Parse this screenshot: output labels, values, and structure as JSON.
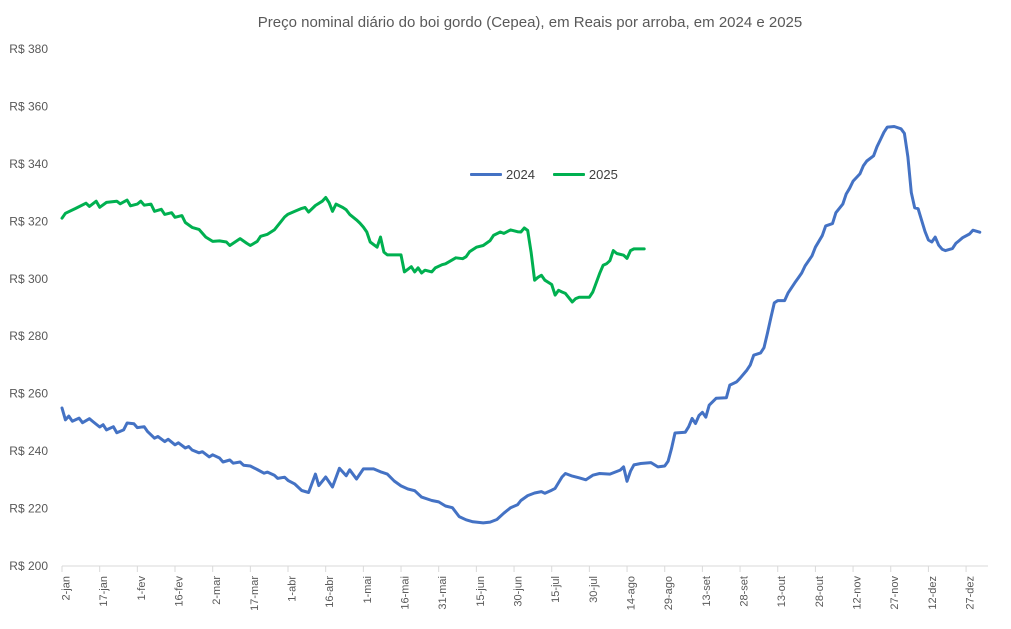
{
  "title": "Preço nominal diário do boi gordo (Cepea), em Reais por arroba, em 2024 e 2025",
  "legend": [
    {
      "label": "2024",
      "color": "#4472C4"
    },
    {
      "label": "2025",
      "color": "#00B050"
    }
  ],
  "chart_data": {
    "type": "line",
    "title": "Preço nominal diário do boi gordo (Cepea), em Reais por arroba, em 2024 e 2025",
    "xlabel": "",
    "ylabel": "",
    "grid": false,
    "legend_position": "inside-top-center",
    "y_axis": {
      "min": 200,
      "max": 380,
      "step": 20,
      "tick_prefix": "R$ ",
      "tick_labels": [
        "R$ 200",
        "R$ 220",
        "R$ 240",
        "R$ 260",
        "R$ 280",
        "R$ 300",
        "R$ 320",
        "R$ 340",
        "R$ 360",
        "R$ 380"
      ]
    },
    "x_axis": {
      "unit": "business-day index from 2-jan (11 points per labeled tick)",
      "points_per_tick": 11,
      "tick_labels": [
        "2-jan",
        "17-jan",
        "1-fev",
        "16-fev",
        "2-mar",
        "17-mar",
        "1-abr",
        "16-abr",
        "1-mai",
        "16-mai",
        "31-mai",
        "15-jun",
        "30-jun",
        "15-jul",
        "30-jul",
        "14-ago",
        "29-ago",
        "13-set",
        "28-set",
        "13-out",
        "28-out",
        "12-nov",
        "27-nov",
        "12-dez",
        "27-dez"
      ]
    },
    "series": [
      {
        "name": "2024",
        "color": "#4472C4",
        "points": [
          [
            0,
            255
          ],
          [
            1,
            250.9
          ],
          [
            2,
            252.2
          ],
          [
            3,
            250.4
          ],
          [
            5,
            251.5
          ],
          [
            6,
            249.9
          ],
          [
            8,
            251.3
          ],
          [
            9,
            250.3
          ],
          [
            11,
            248.4
          ],
          [
            12,
            249.2
          ],
          [
            13,
            247.4
          ],
          [
            15,
            248.5
          ],
          [
            16,
            246.4
          ],
          [
            18,
            247.4
          ],
          [
            19,
            249.8
          ],
          [
            21,
            249.5
          ],
          [
            22,
            248.2
          ],
          [
            24,
            248.5
          ],
          [
            25,
            246.8
          ],
          [
            27,
            244.5
          ],
          [
            28,
            245.1
          ],
          [
            30,
            243.3
          ],
          [
            31,
            244.1
          ],
          [
            33,
            242.2
          ],
          [
            34,
            242.9
          ],
          [
            36,
            241.1
          ],
          [
            37,
            241.6
          ],
          [
            38,
            240.4
          ],
          [
            40,
            239.4
          ],
          [
            41,
            239.8
          ],
          [
            43,
            238
          ],
          [
            44,
            238.7
          ],
          [
            46,
            237.6
          ],
          [
            47,
            236.2
          ],
          [
            49,
            236.9
          ],
          [
            50,
            235.8
          ],
          [
            52,
            236.2
          ],
          [
            53,
            235.1
          ],
          [
            55,
            234.8
          ],
          [
            57,
            233.6
          ],
          [
            59,
            232.3
          ],
          [
            60,
            232.7
          ],
          [
            62,
            231.6
          ],
          [
            63,
            230.5
          ],
          [
            65,
            230.9
          ],
          [
            66,
            229.8
          ],
          [
            68,
            228.5
          ],
          [
            70,
            226.3
          ],
          [
            72,
            225.6
          ],
          [
            74,
            232
          ],
          [
            75,
            228
          ],
          [
            77,
            231
          ],
          [
            79,
            227.5
          ],
          [
            81,
            234
          ],
          [
            83,
            231.4
          ],
          [
            84,
            233.5
          ],
          [
            86,
            230.3
          ],
          [
            88,
            233.8
          ],
          [
            91,
            233.8
          ],
          [
            93,
            232.8
          ],
          [
            95,
            232
          ],
          [
            97,
            229.6
          ],
          [
            99,
            227.9
          ],
          [
            101,
            226.8
          ],
          [
            103,
            226.2
          ],
          [
            105,
            224
          ],
          [
            108,
            222.8
          ],
          [
            110,
            222.3
          ],
          [
            112,
            220.9
          ],
          [
            114,
            220.3
          ],
          [
            116,
            217.2
          ],
          [
            118,
            216.1
          ],
          [
            120,
            215.4
          ],
          [
            123,
            215
          ],
          [
            125,
            215.3
          ],
          [
            127,
            216.2
          ],
          [
            129,
            218.4
          ],
          [
            131,
            220.3
          ],
          [
            133,
            221.3
          ],
          [
            134,
            222.8
          ],
          [
            136,
            224.5
          ],
          [
            138,
            225.4
          ],
          [
            140,
            225.9
          ],
          [
            141,
            225.3
          ],
          [
            143,
            226.4
          ],
          [
            144,
            227
          ],
          [
            146,
            231
          ],
          [
            147,
            232.2
          ],
          [
            149,
            231.3
          ],
          [
            151,
            230.7
          ],
          [
            153,
            230
          ],
          [
            155,
            231.6
          ],
          [
            157,
            232.2
          ],
          [
            160,
            232
          ],
          [
            163,
            233.4
          ],
          [
            164,
            234.5
          ],
          [
            165,
            229.5
          ],
          [
            166,
            233
          ],
          [
            167,
            235.2
          ],
          [
            169,
            235.7
          ],
          [
            172,
            236
          ],
          [
            174,
            234.5
          ],
          [
            176,
            234.8
          ],
          [
            177,
            236.5
          ],
          [
            178,
            241
          ],
          [
            179,
            246.3
          ],
          [
            182,
            246.6
          ],
          [
            183,
            248.5
          ],
          [
            184,
            251.4
          ],
          [
            185,
            249.6
          ],
          [
            186,
            252.4
          ],
          [
            187,
            253.5
          ],
          [
            188,
            251.8
          ],
          [
            189,
            256
          ],
          [
            191,
            258.4
          ],
          [
            194,
            258.6
          ],
          [
            195,
            263
          ],
          [
            197,
            264.1
          ],
          [
            198,
            265.4
          ],
          [
            200,
            268.2
          ],
          [
            201,
            270
          ],
          [
            202,
            273.4
          ],
          [
            204,
            274.2
          ],
          [
            205,
            276
          ],
          [
            206,
            281
          ],
          [
            207,
            286.5
          ],
          [
            208,
            291.6
          ],
          [
            209,
            292.4
          ],
          [
            211,
            292.4
          ],
          [
            212,
            295
          ],
          [
            214,
            298.6
          ],
          [
            215,
            300.3
          ],
          [
            216,
            302
          ],
          [
            217,
            304.5
          ],
          [
            219,
            308
          ],
          [
            220,
            311
          ],
          [
            222,
            315
          ],
          [
            223,
            318.4
          ],
          [
            225,
            319.2
          ],
          [
            226,
            323
          ],
          [
            228,
            326
          ],
          [
            229,
            329.5
          ],
          [
            230,
            331.5
          ],
          [
            231,
            334
          ],
          [
            233,
            336.5
          ],
          [
            234,
            339.3
          ],
          [
            235,
            341
          ],
          [
            237,
            342.8
          ],
          [
            238,
            346
          ],
          [
            239,
            348.5
          ],
          [
            240,
            351
          ],
          [
            241,
            352.8
          ],
          [
            243,
            353
          ],
          [
            245,
            352.2
          ],
          [
            246,
            350.6
          ],
          [
            247,
            342.4
          ],
          [
            248,
            330
          ],
          [
            249,
            324.7
          ],
          [
            250,
            324.4
          ],
          [
            251,
            320.5
          ],
          [
            252,
            316.5
          ],
          [
            253,
            313.5
          ],
          [
            254,
            312.8
          ],
          [
            255,
            314.5
          ],
          [
            256,
            311.7
          ],
          [
            257,
            310.3
          ],
          [
            258,
            309.8
          ],
          [
            260,
            310.5
          ],
          [
            261,
            312.3
          ],
          [
            262,
            313.3
          ],
          [
            263,
            314.3
          ],
          [
            265,
            315.6
          ],
          [
            266,
            316.9
          ],
          [
            268,
            316.2
          ]
        ]
      },
      {
        "name": "2025",
        "color": "#00B050",
        "points": [
          [
            0,
            321.1
          ],
          [
            1,
            322.8
          ],
          [
            4,
            324.5
          ],
          [
            7,
            326.3
          ],
          [
            8,
            325.2
          ],
          [
            10,
            327
          ],
          [
            11,
            324.9
          ],
          [
            13,
            326.6
          ],
          [
            16,
            327
          ],
          [
            17,
            326.1
          ],
          [
            19,
            327.4
          ],
          [
            20,
            325.4
          ],
          [
            22,
            326
          ],
          [
            23,
            327
          ],
          [
            24,
            325.6
          ],
          [
            26,
            326
          ],
          [
            27,
            323.5
          ],
          [
            29,
            324.2
          ],
          [
            30,
            322.4
          ],
          [
            32,
            323
          ],
          [
            33,
            321.4
          ],
          [
            35,
            322
          ],
          [
            36,
            319.6
          ],
          [
            38,
            317.9
          ],
          [
            40,
            317.2
          ],
          [
            42,
            314.5
          ],
          [
            44,
            313
          ],
          [
            46,
            313.2
          ],
          [
            48,
            312.8
          ],
          [
            49,
            311.6
          ],
          [
            52,
            314
          ],
          [
            54,
            312.3
          ],
          [
            55,
            311.6
          ],
          [
            57,
            313
          ],
          [
            58,
            314.8
          ],
          [
            60,
            315.5
          ],
          [
            62,
            317
          ],
          [
            64,
            320
          ],
          [
            65,
            321.5
          ],
          [
            66,
            322.5
          ],
          [
            68,
            323.5
          ],
          [
            70,
            324.5
          ],
          [
            71,
            324.8
          ],
          [
            72,
            323.2
          ],
          [
            74,
            325.5
          ],
          [
            76,
            327
          ],
          [
            77,
            328.3
          ],
          [
            78,
            326.5
          ],
          [
            79,
            323.5
          ],
          [
            80,
            326
          ],
          [
            82,
            324.8
          ],
          [
            83,
            324
          ],
          [
            84,
            322.4
          ],
          [
            86,
            320.5
          ],
          [
            87,
            319.4
          ],
          [
            88,
            318
          ],
          [
            89,
            316.3
          ],
          [
            90,
            312.8
          ],
          [
            92,
            311
          ],
          [
            93,
            314.5
          ],
          [
            94,
            309.3
          ],
          [
            95,
            308.3
          ],
          [
            99,
            308.3
          ],
          [
            100,
            302.4
          ],
          [
            102,
            304.2
          ],
          [
            103,
            302.4
          ],
          [
            104,
            303.8
          ],
          [
            105,
            302
          ],
          [
            106,
            303
          ],
          [
            108,
            302.4
          ],
          [
            109,
            303.8
          ],
          [
            111,
            304.9
          ],
          [
            112,
            305.2
          ],
          [
            114,
            306.6
          ],
          [
            115,
            307.3
          ],
          [
            117,
            307
          ],
          [
            118,
            307.7
          ],
          [
            119,
            309.4
          ],
          [
            121,
            311
          ],
          [
            123,
            311.6
          ],
          [
            125,
            313.3
          ],
          [
            126,
            315.1
          ],
          [
            128,
            316.3
          ],
          [
            129,
            315.8
          ],
          [
            131,
            317
          ],
          [
            133,
            316.4
          ],
          [
            134,
            316.3
          ],
          [
            135,
            317.7
          ],
          [
            136,
            316.8
          ],
          [
            137,
            309
          ],
          [
            138,
            299.5
          ],
          [
            139,
            300.5
          ],
          [
            140,
            301.2
          ],
          [
            141,
            299.5
          ],
          [
            143,
            298
          ],
          [
            144,
            294.3
          ],
          [
            145,
            296
          ],
          [
            146,
            295.4
          ],
          [
            147,
            294.9
          ],
          [
            149,
            291.9
          ],
          [
            150,
            293.1
          ],
          [
            151,
            293.6
          ],
          [
            154,
            293.6
          ],
          [
            155,
            295.4
          ],
          [
            157,
            301.8
          ],
          [
            158,
            304.7
          ],
          [
            159,
            305.2
          ],
          [
            160,
            306.3
          ],
          [
            161,
            309.8
          ],
          [
            162,
            308.8
          ],
          [
            164,
            308.2
          ],
          [
            165,
            307.1
          ],
          [
            166,
            309.8
          ],
          [
            167,
            310.4
          ],
          [
            170,
            310.4
          ]
        ]
      }
    ]
  }
}
